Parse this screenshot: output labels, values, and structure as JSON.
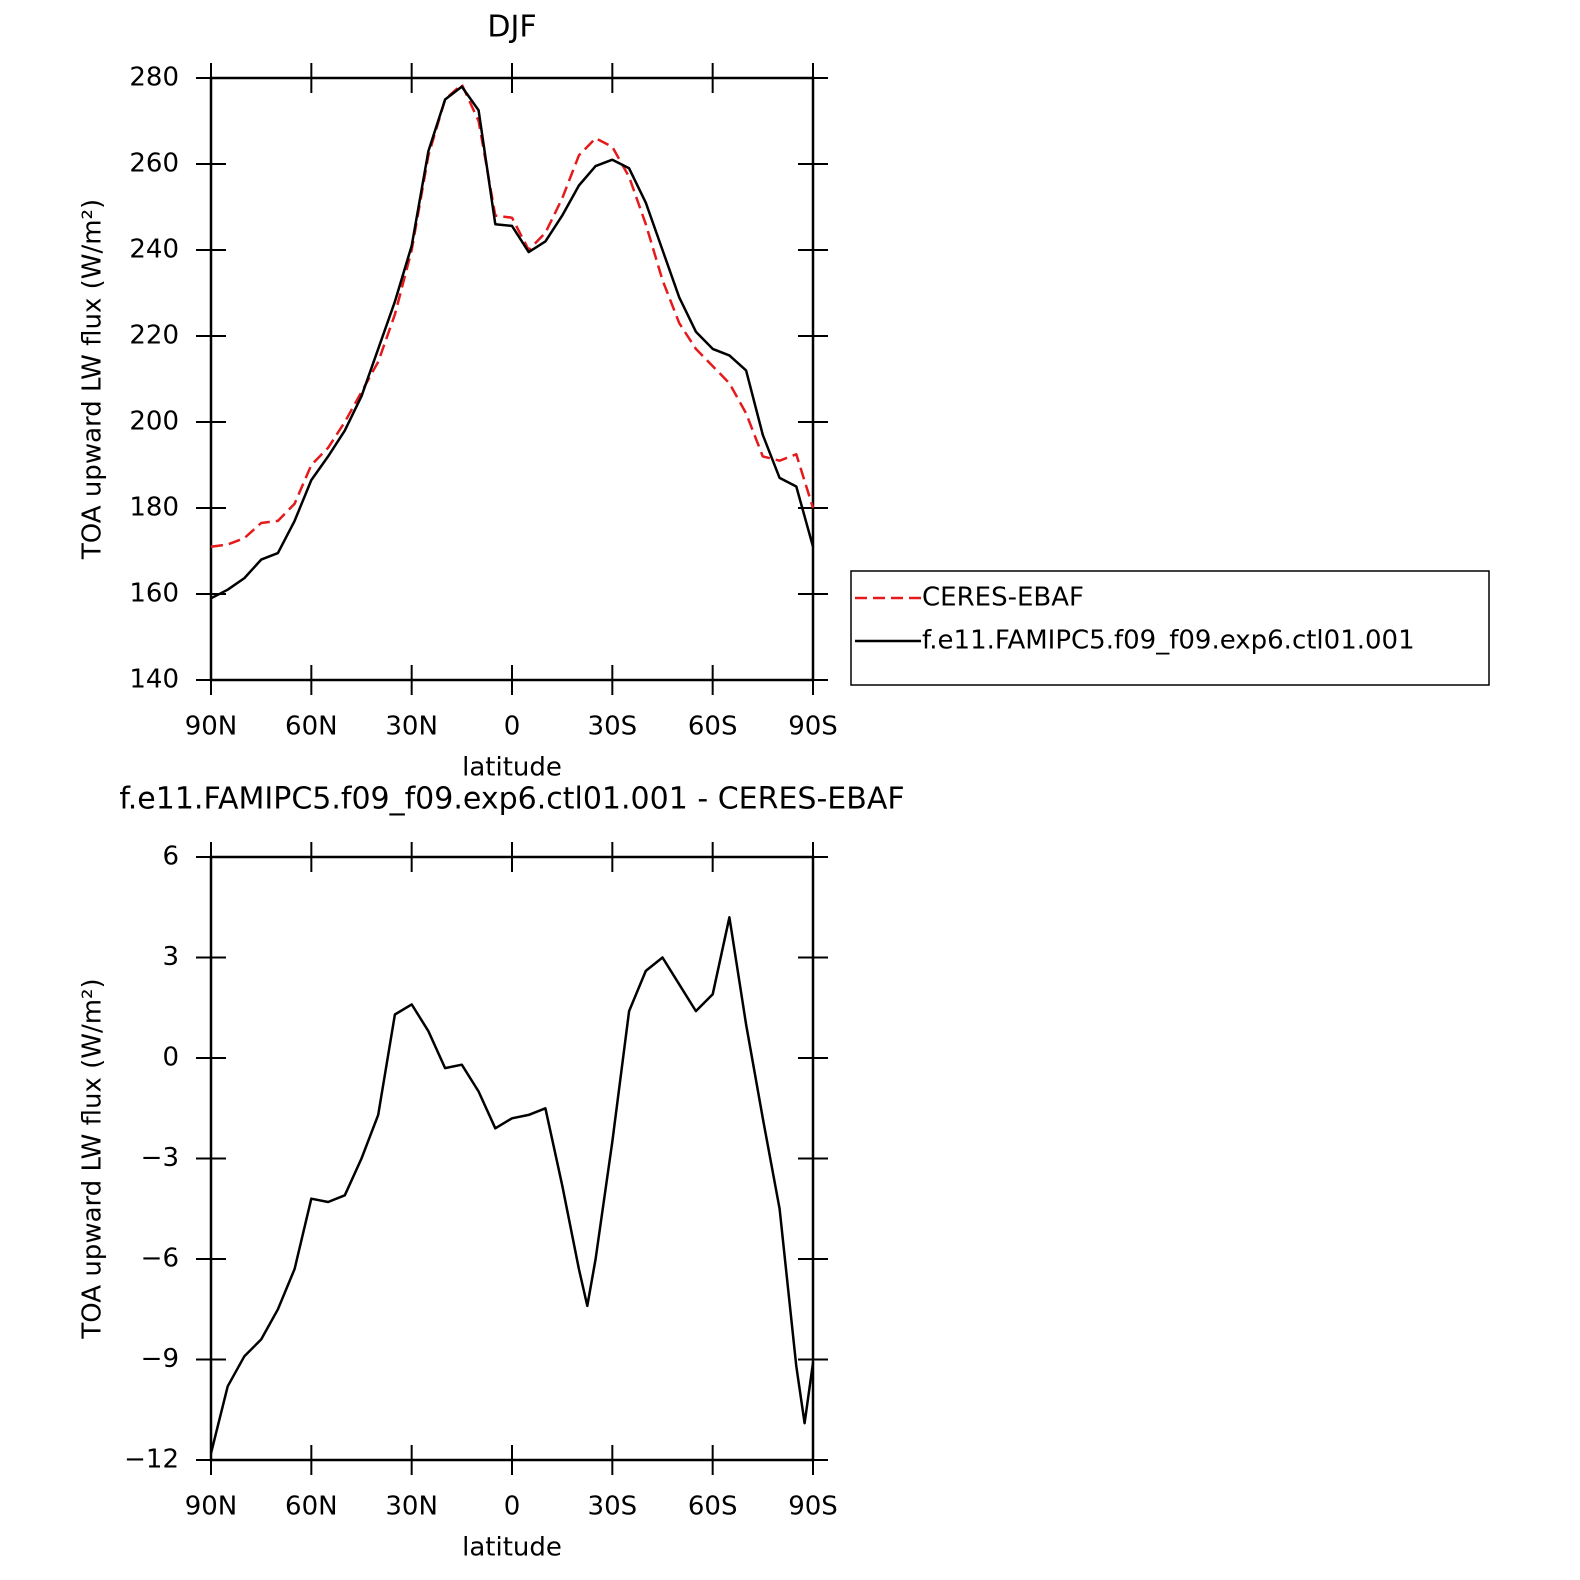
{
  "chart_data": [
    {
      "type": "line",
      "title": "DJF",
      "xlabel": "latitude",
      "ylabel": "TOA upward LW flux (W/m²)",
      "x": [
        90,
        85,
        80,
        75,
        70,
        65,
        60,
        55,
        50,
        45,
        40,
        35,
        30,
        25,
        20,
        15,
        10,
        5,
        0,
        -5,
        -10,
        -15,
        -20,
        -25,
        -30,
        -35,
        -40,
        -45,
        -50,
        -55,
        -60,
        -65,
        -70,
        -75,
        -80,
        -85,
        -90
      ],
      "xlim": [
        90,
        -90
      ],
      "xticks": [
        {
          "value": 90,
          "label": "90N"
        },
        {
          "value": 60,
          "label": "60N"
        },
        {
          "value": 30,
          "label": "30N"
        },
        0,
        {
          "value": -30,
          "label": "30S"
        },
        {
          "value": -60,
          "label": "60S"
        },
        {
          "value": -90,
          "label": "90S"
        }
      ],
      "ylim": [
        140,
        280
      ],
      "yticks": [
        140,
        160,
        180,
        200,
        220,
        240,
        260,
        280
      ],
      "legend": "right",
      "series": [
        {
          "name": "CERES-EBAF",
          "color": "#e41a1c",
          "line_style": "dashed",
          "values": [
            171,
            171.5,
            173,
            176.5,
            177,
            181,
            190,
            194,
            200,
            207,
            214,
            225,
            240,
            262,
            275,
            278.5,
            270,
            248,
            247.5,
            240,
            244,
            252,
            262,
            266,
            264,
            257,
            246,
            233,
            223,
            217,
            213,
            209,
            202,
            192,
            191,
            192.5,
            180
          ]
        },
        {
          "name": "f.e11.FAMIPC5.f09_f09.exp6.ctl01.001",
          "color": "#000000",
          "line_style": "solid",
          "values": [
            159,
            161,
            163.7,
            168,
            169.5,
            177,
            186.5,
            192,
            198,
            206,
            217,
            228,
            241,
            263,
            275,
            278,
            272.5,
            246,
            245.6,
            239.5,
            242,
            248,
            255,
            259.5,
            261,
            259,
            251,
            240,
            229,
            221,
            217,
            215.5,
            212,
            197,
            187,
            185,
            171
          ]
        }
      ]
    },
    {
      "type": "line",
      "title": "f.e11.FAMIPC5.f09_f09.exp6.ctl01.001 - CERES-EBAF",
      "xlabel": "latitude",
      "ylabel": "TOA upward LW flux (W/m²)",
      "x": [
        90,
        85,
        80,
        75,
        70,
        65,
        60,
        55,
        50,
        45,
        40,
        35,
        30,
        25,
        20,
        15,
        10,
        5,
        0,
        -5,
        -10,
        -15,
        -20,
        -22.5,
        -25,
        -30,
        -35,
        -40,
        -45,
        -50,
        -55,
        -60,
        -65,
        -70,
        -75,
        -80,
        -85,
        -87.5,
        -90
      ],
      "xlim": [
        90,
        -90
      ],
      "xticks": [
        {
          "value": 90,
          "label": "90N"
        },
        {
          "value": 60,
          "label": "60N"
        },
        {
          "value": 30,
          "label": "30N"
        },
        0,
        {
          "value": -30,
          "label": "30S"
        },
        {
          "value": -60,
          "label": "60S"
        },
        {
          "value": -90,
          "label": "90S"
        }
      ],
      "ylim": [
        -12,
        6
      ],
      "yticks": [
        {
          "value": -12,
          "label": "−12"
        },
        {
          "value": -9,
          "label": "−9"
        },
        {
          "value": -6,
          "label": "−6"
        },
        {
          "value": -3,
          "label": "−3"
        },
        0,
        3,
        6
      ],
      "color": "#000000",
      "values": [
        -11.8,
        -9.8,
        -8.9,
        -8.4,
        -7.5,
        -6.3,
        -4.2,
        -4.3,
        -4.1,
        -3.0,
        -1.7,
        1.3,
        1.6,
        0.8,
        -0.3,
        -0.2,
        -1.0,
        -2.1,
        -1.8,
        -1.7,
        -1.5,
        -3.8,
        -6.3,
        -7.4,
        -6.0,
        -2.5,
        1.4,
        2.6,
        3.0,
        2.2,
        1.4,
        1.9,
        4.2,
        1.0,
        -1.8,
        -4.5,
        -9.2,
        -10.9,
        -9.1
      ]
    }
  ]
}
